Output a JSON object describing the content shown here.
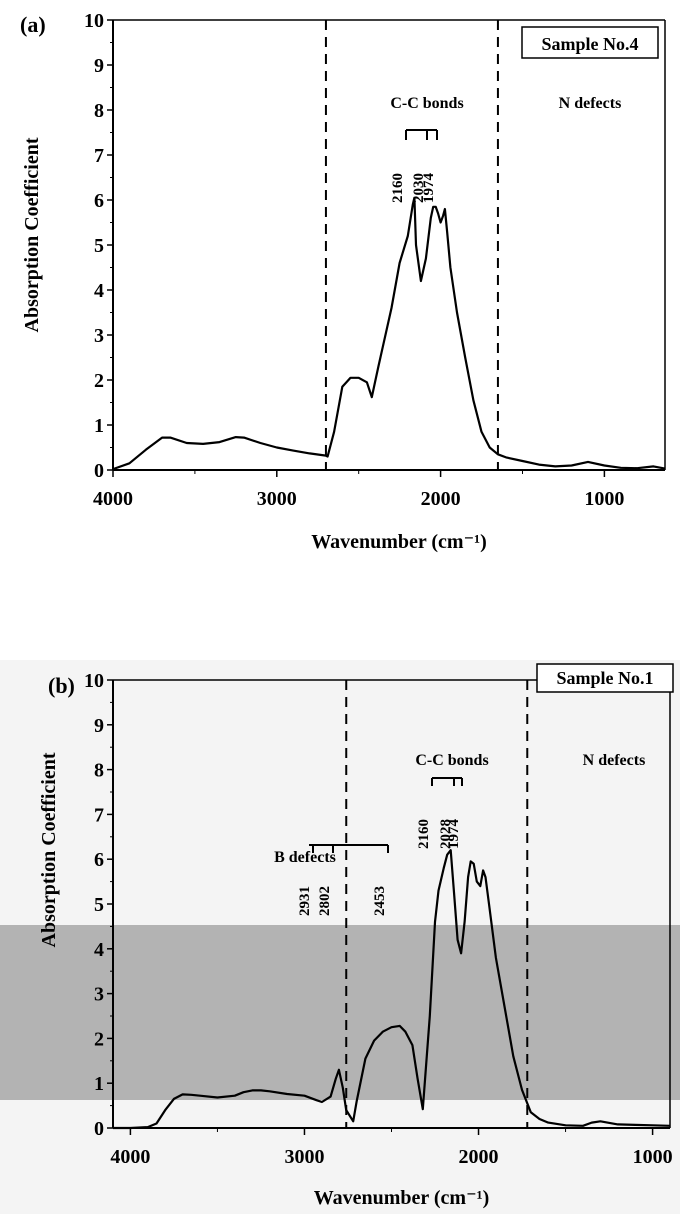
{
  "chart_data": [
    {
      "type": "line",
      "panel_label": "(a)",
      "legend": "Sample No.4",
      "xlabel": "Wavenumber (cm⁻¹)",
      "ylabel": "Absorption Coefficient",
      "xlim": [
        4000,
        630
      ],
      "ylim": [
        0,
        10
      ],
      "x_ticks": [
        4000,
        3000,
        2000,
        1000
      ],
      "y_ticks": [
        0,
        1,
        2,
        3,
        4,
        5,
        6,
        7,
        8,
        9,
        10
      ],
      "regions": [
        {
          "label": "C-C bonds",
          "peaks": [
            "2160",
            "2030",
            "1974"
          ]
        },
        {
          "label": "N defects"
        }
      ],
      "dashed_lines_x": [
        2700,
        1650
      ],
      "series": [
        {
          "x": [
            4000,
            3900,
            3800,
            3700,
            3650,
            3550,
            3450,
            3350,
            3250,
            3200,
            3100,
            3000,
            2900,
            2800,
            2700,
            2690,
            2650,
            2600,
            2550,
            2500,
            2450,
            2420,
            2380,
            2300,
            2250,
            2200,
            2170,
            2160,
            2150,
            2120,
            2090,
            2060,
            2045,
            2030,
            2015,
            2000,
            1985,
            1974,
            1960,
            1940,
            1900,
            1850,
            1800,
            1750,
            1700,
            1650,
            1600,
            1500,
            1400,
            1300,
            1200,
            1100,
            1000,
            900,
            800,
            700,
            630
          ],
          "y": [
            0.02,
            0.15,
            0.45,
            0.72,
            0.72,
            0.6,
            0.58,
            0.62,
            0.73,
            0.72,
            0.6,
            0.5,
            0.43,
            0.37,
            0.32,
            0.3,
            0.85,
            1.85,
            2.05,
            2.05,
            1.95,
            1.62,
            2.3,
            3.6,
            4.6,
            5.2,
            5.9,
            6.05,
            5.0,
            4.2,
            4.7,
            5.6,
            5.85,
            5.85,
            5.7,
            5.5,
            5.65,
            5.8,
            5.3,
            4.5,
            3.5,
            2.5,
            1.55,
            0.85,
            0.5,
            0.35,
            0.28,
            0.2,
            0.12,
            0.08,
            0.1,
            0.18,
            0.1,
            0.05,
            0.04,
            0.08,
            0.03
          ]
        }
      ]
    },
    {
      "type": "line",
      "panel_label": "(b)",
      "legend": "Sample No.1",
      "xlabel": "Wavenumber (cm⁻¹)",
      "ylabel": "Absorption Coefficient",
      "xlim": [
        4100,
        900
      ],
      "ylim": [
        0,
        10
      ],
      "x_ticks": [
        4000,
        3000,
        2000,
        1000
      ],
      "y_ticks": [
        0,
        1,
        2,
        3,
        4,
        5,
        6,
        7,
        8,
        9,
        10
      ],
      "regions": [
        {
          "label": "B defects",
          "peaks": [
            "2931",
            "2802",
            "2453"
          ]
        },
        {
          "label": "C-C bonds",
          "peaks": [
            "2160",
            "2028",
            "1974"
          ]
        },
        {
          "label": "N defects"
        }
      ],
      "dashed_lines_x": [
        2760,
        1720
      ],
      "series": [
        {
          "x": [
            4100,
            4000,
            3900,
            3850,
            3800,
            3750,
            3700,
            3650,
            3600,
            3500,
            3400,
            3350,
            3300,
            3250,
            3200,
            3100,
            3000,
            2931,
            2900,
            2850,
            2820,
            2802,
            2780,
            2760,
            2720,
            2700,
            2650,
            2600,
            2550,
            2500,
            2453,
            2420,
            2380,
            2350,
            2320,
            2280,
            2250,
            2230,
            2200,
            2180,
            2160,
            2140,
            2120,
            2100,
            2080,
            2060,
            2045,
            2028,
            2010,
            1990,
            1974,
            1960,
            1940,
            1900,
            1850,
            1800,
            1750,
            1700,
            1650,
            1600,
            1500,
            1400,
            1350,
            1300,
            1200,
            1100,
            1000,
            900
          ],
          "y": [
            0.0,
            0.0,
            0.02,
            0.1,
            0.4,
            0.65,
            0.75,
            0.74,
            0.72,
            0.68,
            0.72,
            0.8,
            0.84,
            0.84,
            0.82,
            0.76,
            0.72,
            0.62,
            0.58,
            0.7,
            1.1,
            1.3,
            0.9,
            0.4,
            0.15,
            0.6,
            1.55,
            1.95,
            2.15,
            2.25,
            2.28,
            2.15,
            1.85,
            1.1,
            0.42,
            2.5,
            4.6,
            5.3,
            5.8,
            6.1,
            6.2,
            5.2,
            4.2,
            3.9,
            4.6,
            5.6,
            5.95,
            5.9,
            5.5,
            5.4,
            5.75,
            5.6,
            5.0,
            3.8,
            2.7,
            1.6,
            0.85,
            0.35,
            0.2,
            0.12,
            0.06,
            0.05,
            0.12,
            0.15,
            0.08,
            0.07,
            0.06,
            0.05
          ]
        }
      ]
    }
  ]
}
